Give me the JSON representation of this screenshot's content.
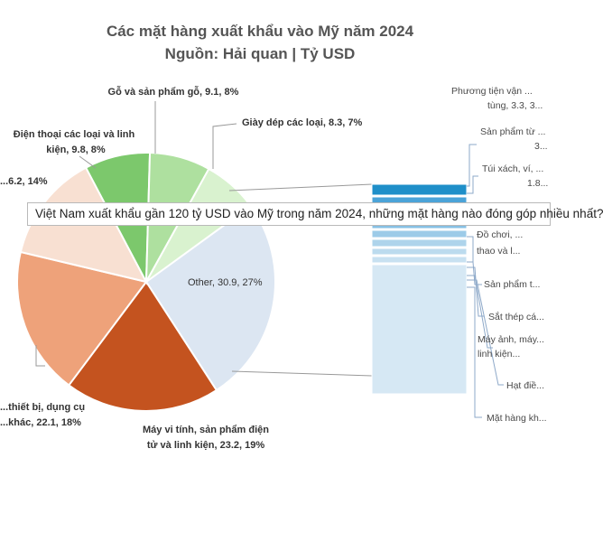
{
  "chart_data": {
    "type": "pie",
    "title": "Các mặt hàng xuất khẩu vào Mỹ năm 2024",
    "subtitle": "Nguồn: Hải quan | Tỷ USD",
    "slices": [
      {
        "label": "Other, 30.9, 27%",
        "value": 30.9,
        "percent": 27,
        "color": "#dce6f2"
      },
      {
        "label": "Máy vi tính, sản phẩm điện tử và linh kiện, 23.2, 19%",
        "value": 23.2,
        "percent": 19,
        "color": "#c4531f"
      },
      {
        "label": "...thiết bị, dụng cụ ...khác, 22.1, 18%",
        "value": 22.1,
        "percent": 18,
        "color": "#eea27a"
      },
      {
        "label": "...6.2, 14%",
        "value": 16.2,
        "percent": 14,
        "color": "#f8e0d2"
      },
      {
        "label": "Điện thoại các loại và linh kiện, 9.8, 8%",
        "value": 9.8,
        "percent": 8,
        "color": "#7cc86c"
      },
      {
        "label": "Gỗ và sản phẩm gỗ, 9.1, 8%",
        "value": 9.1,
        "percent": 8,
        "color": "#aee09f"
      },
      {
        "label": "Giày dép các loại, 8.3, 7%",
        "value": 8.3,
        "percent": 7,
        "color": "#d9f2cf"
      }
    ],
    "pie_labels": {
      "other": "Other, 30.9, 27%",
      "computers_l1": "Máy vi tính, sản phẩm điện",
      "computers_l2": "tử và linh kiện, 23.2, 19%",
      "machinery_l1": "...thiết bị, dụng cụ",
      "machinery_l2": "...khác, 22.1, 18%",
      "textiles": "...6.2, 14%",
      "phones_l1": "Điện thoại các loại và linh",
      "phones_l2": "kiện, 9.8, 8%",
      "wood": "Gỗ và sản phẩm gỗ, 9.1, 8%",
      "shoes": "Giày dép các loại, 8.3, 7%"
    },
    "other_breakdown": {
      "bar_colors": [
        "#1f8fc9",
        "#4ba3d8",
        "#68b2de",
        "#86c0e4",
        "#9ccbe8",
        "#aed4eb",
        "#bcdbee",
        "#c8e1f1",
        "#d6e8f4"
      ],
      "labels": [
        "Phương tiện vận ...",
        "tùng, 3.3, 3...",
        "Sản phẩm từ ...",
        "3...",
        "Túi xách, ví, ...",
        "1.8...",
        "Đồ chơi, ...",
        "thao và l...",
        "Sản phẩm t...",
        "Sắt thép cá...",
        "Máy ảnh, máy...",
        "linh kiện...",
        "Hạt điề...",
        "Mặt hàng kh..."
      ]
    }
  },
  "tooltip": {
    "text": "Việt Nam xuất khẩu gần 120 tỷ USD vào Mỹ trong năm 2024, những mặt hàng nào đóng góp nhiều nhất?"
  }
}
